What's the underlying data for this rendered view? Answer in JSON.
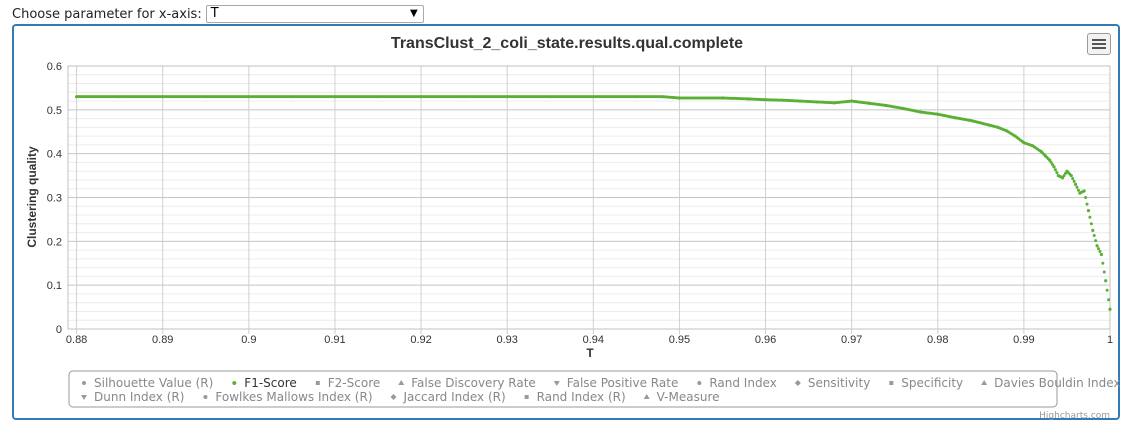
{
  "control": {
    "label": "Choose parameter for x-axis:",
    "selected": "T"
  },
  "menu_icon": "hamburger-menu-icon",
  "accent_color": "#337ab7",
  "credit": "Highcharts.com",
  "chart_data": {
    "type": "scatter",
    "title": "TransClust_2_coli_state.results.qual.complete",
    "xlabel": "T",
    "ylabel": "Clustering quality",
    "xlim": [
      0.879,
      1.0
    ],
    "ylim": [
      0,
      0.6
    ],
    "xticks": [
      "0.88",
      "0.89",
      "0.9",
      "0.91",
      "0.92",
      "0.93",
      "0.94",
      "0.95",
      "0.96",
      "0.97",
      "0.98",
      "0.99",
      "1"
    ],
    "yticks": [
      "0",
      "0.1",
      "0.2",
      "0.3",
      "0.4",
      "0.5",
      "0.6"
    ],
    "grid": true,
    "legend_position": "bottom",
    "series": [
      {
        "name": "Silhouette Value (R)",
        "marker": "circle",
        "visible": false,
        "x": [],
        "y": []
      },
      {
        "name": "F1-Score",
        "marker": "circle",
        "visible": true,
        "color": "#5ab034",
        "x": [
          0.88,
          0.885,
          0.89,
          0.895,
          0.9,
          0.905,
          0.91,
          0.915,
          0.92,
          0.925,
          0.93,
          0.935,
          0.94,
          0.945,
          0.948,
          0.95,
          0.955,
          0.958,
          0.96,
          0.962,
          0.964,
          0.966,
          0.968,
          0.97,
          0.972,
          0.974,
          0.976,
          0.978,
          0.98,
          0.982,
          0.984,
          0.986,
          0.987,
          0.988,
          0.989,
          0.99,
          0.991,
          0.992,
          0.9925,
          0.993,
          0.9935,
          0.994,
          0.9945,
          0.995,
          0.9955,
          0.996,
          0.9965,
          0.997,
          0.9975,
          0.998,
          0.9985,
          0.999,
          0.9995,
          1.0
        ],
        "y": [
          0.53,
          0.53,
          0.53,
          0.53,
          0.53,
          0.53,
          0.53,
          0.53,
          0.53,
          0.53,
          0.53,
          0.53,
          0.53,
          0.53,
          0.53,
          0.527,
          0.527,
          0.525,
          0.523,
          0.522,
          0.52,
          0.518,
          0.516,
          0.52,
          0.515,
          0.51,
          0.503,
          0.495,
          0.49,
          0.482,
          0.475,
          0.465,
          0.46,
          0.452,
          0.44,
          0.425,
          0.418,
          0.405,
          0.395,
          0.385,
          0.37,
          0.35,
          0.345,
          0.36,
          0.35,
          0.33,
          0.31,
          0.315,
          0.27,
          0.225,
          0.19,
          0.17,
          0.11,
          0.045
        ]
      },
      {
        "name": "F2-Score",
        "marker": "square",
        "visible": false,
        "x": [],
        "y": []
      },
      {
        "name": "False Discovery Rate",
        "marker": "triangle",
        "visible": false,
        "x": [],
        "y": []
      },
      {
        "name": "False Positive Rate",
        "marker": "triangle-down",
        "visible": false,
        "x": [],
        "y": []
      },
      {
        "name": "Rand Index",
        "marker": "circle",
        "visible": false,
        "x": [],
        "y": []
      },
      {
        "name": "Sensitivity",
        "marker": "diamond",
        "visible": false,
        "x": [],
        "y": []
      },
      {
        "name": "Specificity",
        "marker": "square",
        "visible": false,
        "x": [],
        "y": []
      },
      {
        "name": "Davies Bouldin Index (R)",
        "marker": "triangle",
        "visible": false,
        "x": [],
        "y": []
      },
      {
        "name": "Dunn Index (R)",
        "marker": "triangle-down",
        "visible": false,
        "x": [],
        "y": []
      },
      {
        "name": "Fowlkes Mallows Index (R)",
        "marker": "circle",
        "visible": false,
        "x": [],
        "y": []
      },
      {
        "name": "Jaccard Index (R)",
        "marker": "diamond",
        "visible": false,
        "x": [],
        "y": []
      },
      {
        "name": "Rand Index (R)",
        "marker": "square",
        "visible": false,
        "x": [],
        "y": []
      },
      {
        "name": "V-Measure",
        "marker": "triangle",
        "visible": false,
        "x": [],
        "y": []
      }
    ]
  }
}
